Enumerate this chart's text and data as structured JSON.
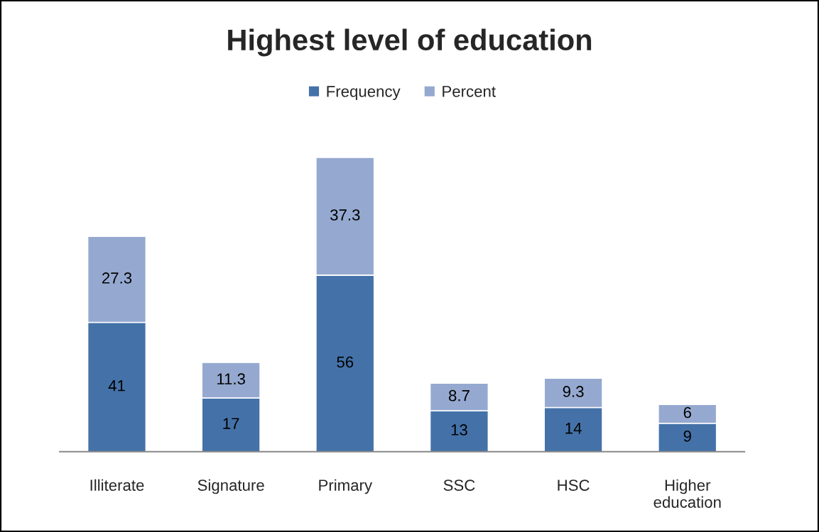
{
  "chart_data": {
    "type": "bar",
    "title": "Highest level of education",
    "categories": [
      "Illiterate",
      "Signature",
      "Primary",
      "SSC",
      "HSC",
      "Higher education"
    ],
    "stacked": true,
    "data_labels": true,
    "legend": "top",
    "series": [
      {
        "name": "Frequency",
        "color": "#4472a8",
        "values": [
          41,
          17,
          56,
          13,
          14,
          9
        ]
      },
      {
        "name": "Percent",
        "color": "#95a9d0",
        "values": [
          27.3,
          11.3,
          37.3,
          8.7,
          9.3,
          6
        ]
      }
    ]
  }
}
